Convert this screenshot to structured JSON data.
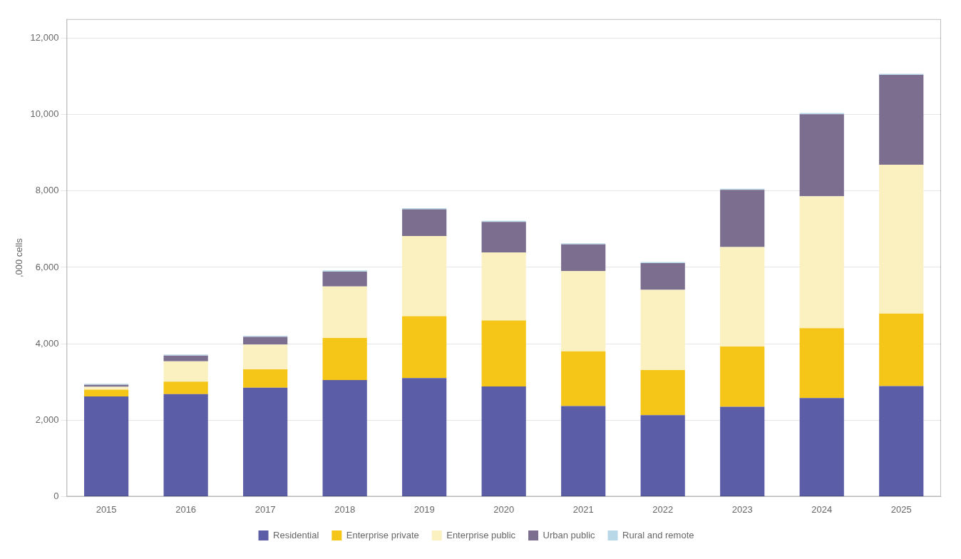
{
  "chart_data": {
    "type": "bar",
    "stacked": true,
    "categories": [
      "2015",
      "2016",
      "2017",
      "2018",
      "2019",
      "2020",
      "2021",
      "2022",
      "2023",
      "2024",
      "2025"
    ],
    "series": [
      {
        "name": "Residential",
        "color": "#5b5ea6",
        "values": [
          2620,
          2680,
          2850,
          3050,
          3100,
          2880,
          2370,
          2130,
          2350,
          2580,
          2890
        ]
      },
      {
        "name": "Enterprise private",
        "color": "#f5c518",
        "values": [
          180,
          330,
          480,
          1100,
          1620,
          1730,
          1430,
          1180,
          1580,
          1830,
          1900
        ]
      },
      {
        "name": "Enterprise public",
        "color": "#faf0c0",
        "values": [
          75,
          530,
          650,
          1350,
          2100,
          1780,
          2100,
          2100,
          2600,
          3450,
          3900
        ]
      },
      {
        "name": "Urban public",
        "color": "#7b6e8f",
        "values": [
          50,
          150,
          200,
          390,
          700,
          800,
          700,
          700,
          1500,
          2150,
          2350
        ]
      },
      {
        "name": "Rural and remote",
        "color": "#b8d8e8",
        "values": [
          25,
          30,
          30,
          30,
          30,
          30,
          30,
          30,
          30,
          30,
          30
        ]
      }
    ],
    "ylabel": ",000 cells",
    "ylim": [
      0,
      12500
    ],
    "yticks": [
      0,
      {
        "value": 2000,
        "label": "2,000"
      },
      {
        "value": 4000,
        "label": "4,000"
      },
      {
        "value": 6000,
        "label": "6,000"
      },
      {
        "value": 8000,
        "label": "8,000"
      },
      {
        "value": 10000,
        "label": "10,000"
      },
      {
        "value": 12000,
        "label": "12,000"
      }
    ],
    "grid": true,
    "legend": "bottom"
  }
}
